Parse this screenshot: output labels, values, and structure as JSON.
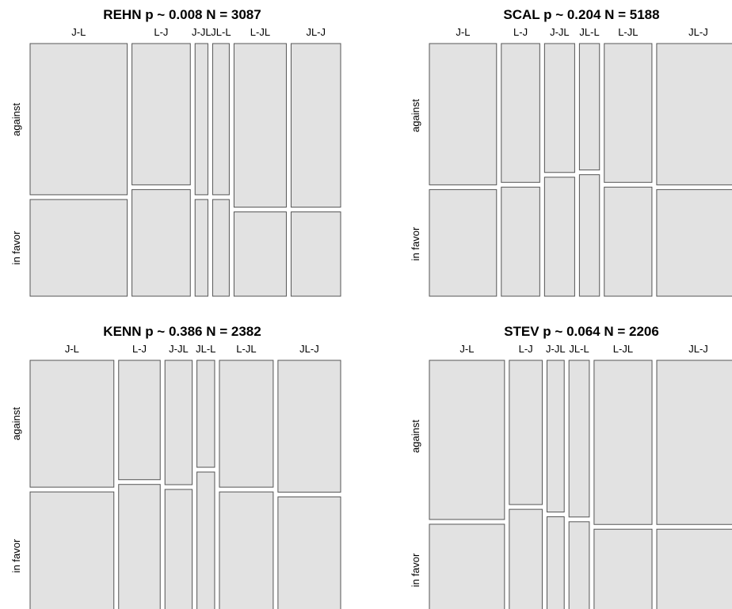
{
  "chart_data": [
    {
      "type": "mosaic",
      "title": "REHN  p ~ 0.008  N = 3087",
      "categories": [
        "J-L",
        "L-J",
        "J-JL",
        "JL-L",
        "L-JL",
        "JL-J"
      ],
      "rows": [
        "against",
        "in favor"
      ],
      "col_share": [
        0.386,
        0.232,
        0.051,
        0.066,
        0.208,
        0.197
      ],
      "against_share": [
        0.61,
        0.57,
        0.61,
        0.61,
        0.66,
        0.66
      ]
    },
    {
      "type": "mosaic",
      "title": "SCAL  p ~ 0.204  N = 5188",
      "categories": [
        "J-L",
        "L-J",
        "J-JL",
        "JL-L",
        "L-JL",
        "JL-J"
      ],
      "rows": [
        "against",
        "in favor"
      ],
      "col_share": [
        0.234,
        0.134,
        0.105,
        0.07,
        0.166,
        0.29
      ],
      "against_share": [
        0.57,
        0.56,
        0.52,
        0.51,
        0.56,
        0.57
      ]
    },
    {
      "type": "mosaic",
      "title": "KENN  p ~ 0.386  N = 2382",
      "categories": [
        "J-L",
        "L-J",
        "J-JL",
        "JL-L",
        "L-JL",
        "JL-J"
      ],
      "rows": [
        "against",
        "in favor"
      ],
      "col_share": [
        0.274,
        0.136,
        0.089,
        0.058,
        0.176,
        0.205
      ],
      "against_share": [
        0.51,
        0.48,
        0.5,
        0.43,
        0.51,
        0.53
      ]
    },
    {
      "type": "mosaic",
      "title": "STEV  p ~ 0.064  N = 2206",
      "categories": [
        "J-L",
        "L-J",
        "J-JL",
        "JL-L",
        "L-JL",
        "JL-J"
      ],
      "rows": [
        "against",
        "in favor"
      ],
      "col_share": [
        0.262,
        0.115,
        0.06,
        0.071,
        0.202,
        0.29
      ],
      "against_share": [
        0.64,
        0.58,
        0.61,
        0.63,
        0.66,
        0.66
      ]
    }
  ]
}
